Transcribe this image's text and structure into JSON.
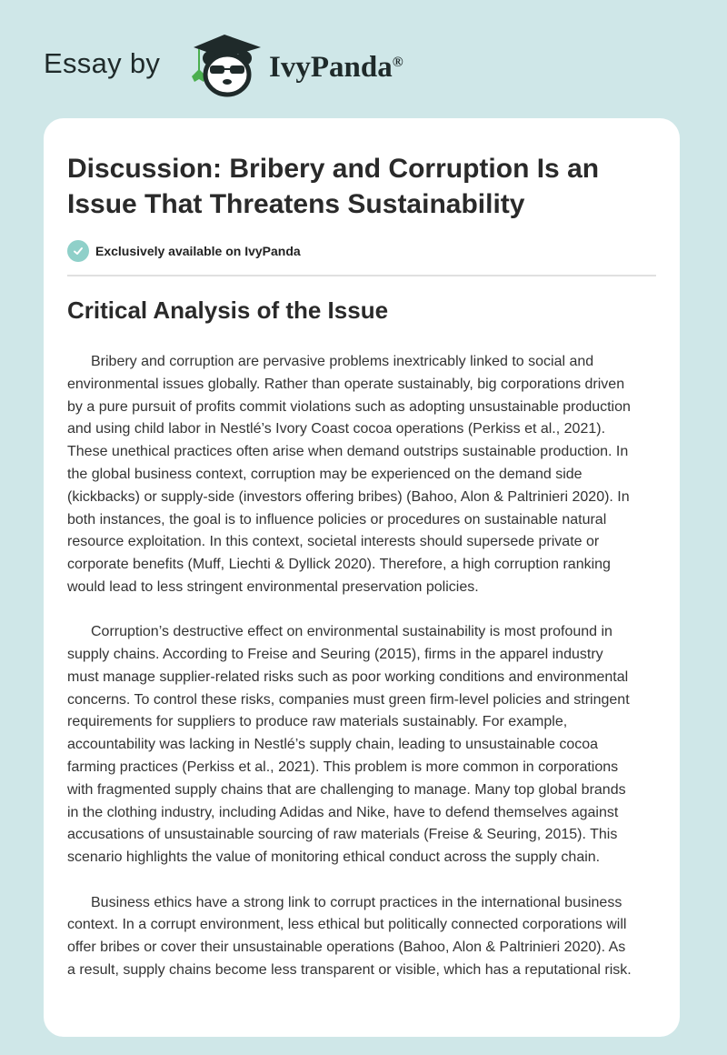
{
  "header": {
    "essay_by": "Essay by",
    "brand": "IvyPanda",
    "registered": "®",
    "logo": "ivypanda-panda-graduate-logo"
  },
  "article": {
    "title": "Discussion: Bribery and Corruption Is an Issue That Threatens Sustainability",
    "badge": {
      "icon": "check-circle-icon",
      "text": "Exclusively available on IvyPanda",
      "color": "#8fd0c9"
    },
    "section_heading": "Critical Analysis of the Issue",
    "paragraphs": [
      [
        "Bribery and corruption are pervasive problems inextricably linked to social and",
        "environmental issues globally. Rather than operate sustainably, big corporations driven",
        "by a pure pursuit of profits commit violations such as adopting unsustainable production",
        "and using child labor in Nestlé’s Ivory Coast cocoa operations (Perkiss et al., 2021).",
        "These unethical practices often arise when demand outstrips sustainable production. In",
        "the global business context, corruption may be experienced on the demand side",
        "(kickbacks) or supply-side (investors offering bribes) (Bahoo, Alon & Paltrinieri 2020). In",
        "both instances, the goal is to influence policies or procedures on sustainable natural",
        "resource exploitation. In this context, societal interests should supersede private or",
        "corporate benefits (Muff, Liechti & Dyllick 2020). Therefore, a high corruption ranking",
        "would lead to less stringent environmental preservation policies."
      ],
      [
        "Corruption’s destructive effect on environmental sustainability is most profound in",
        "supply chains. According to Freise and Seuring (2015), firms in the apparel industry",
        "must manage supplier-related risks such as poor working conditions and environmental",
        "concerns. To control these risks, companies must green firm-level policies and stringent",
        "requirements for suppliers to produce raw materials sustainably. For example,",
        "accountability was lacking in Nestlé’s supply chain, leading to unsustainable cocoa",
        "farming practices (Perkiss et al., 2021). This problem is more common in corporations",
        "with fragmented supply chains that are challenging to manage. Many top global brands",
        "in the clothing industry, including Adidas and Nike, have to defend themselves against",
        "accusations of unsustainable sourcing of raw materials (Freise & Seuring, 2015). This",
        "scenario highlights the value of monitoring ethical conduct across the supply chain."
      ],
      [
        "Business ethics have a strong link to corrupt practices in the international business",
        "context. In a corrupt environment, less ethical but politically connected corporations will",
        "offer bribes or cover their unsustainable operations (Bahoo, Alon & Paltrinieri 2020). As",
        "a result, supply chains become less transparent or visible, which has a reputational risk."
      ]
    ]
  },
  "colors": {
    "background": "#cfe7e8",
    "card": "#ffffff",
    "text": "#333333"
  }
}
